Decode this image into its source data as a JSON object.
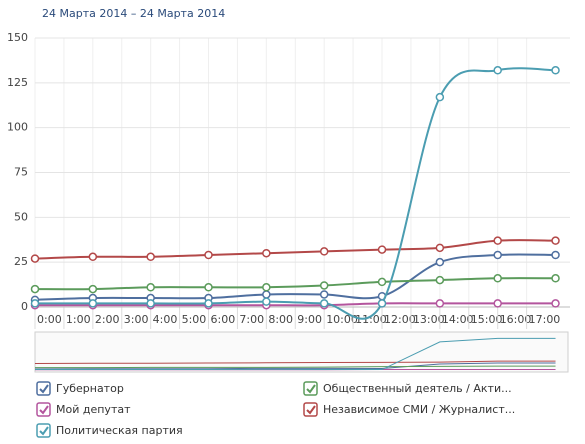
{
  "chart_data": {
    "type": "line",
    "title": "24 Марта 2014 – 24 Марта 2014",
    "x": [
      0,
      2,
      4,
      6,
      8,
      10,
      12,
      14,
      16,
      18
    ],
    "xlim": [
      0,
      18.5
    ],
    "xticks": [
      {
        "value": 0,
        "label": "0:00"
      },
      {
        "value": 1,
        "label": "1:00"
      },
      {
        "value": 2,
        "label": "2:00"
      },
      {
        "value": 3,
        "label": "3:00"
      },
      {
        "value": 4,
        "label": "4:00"
      },
      {
        "value": 5,
        "label": "5:00"
      },
      {
        "value": 6,
        "label": "6:00"
      },
      {
        "value": 7,
        "label": "7:00"
      },
      {
        "value": 8,
        "label": "8:00"
      },
      {
        "value": 9,
        "label": "9:00"
      },
      {
        "value": 10,
        "label": "10:00"
      },
      {
        "value": 11,
        "label": "11:00"
      },
      {
        "value": 12,
        "label": "12:00"
      },
      {
        "value": 13,
        "label": "13:00"
      },
      {
        "value": 14,
        "label": "14:00"
      },
      {
        "value": 15,
        "label": "15:00"
      },
      {
        "value": 16,
        "label": "16:00"
      },
      {
        "value": 17,
        "label": "17:00"
      }
    ],
    "ylim": [
      0,
      150
    ],
    "yticks": [
      0,
      25,
      50,
      75,
      100,
      125,
      150
    ],
    "grid": true,
    "series": [
      {
        "name": "Губернатор",
        "color": "#4f6f9f",
        "values": [
          4,
          5,
          5,
          5,
          7,
          7,
          6,
          25,
          29,
          29
        ]
      },
      {
        "name": "Общественный деятель / Акти...",
        "color": "#5b9b5b",
        "values": [
          10,
          10,
          11,
          11,
          11,
          12,
          14,
          15,
          16,
          16
        ]
      },
      {
        "name": "Мой депутат",
        "color": "#b3559d",
        "values": [
          1,
          1,
          1,
          1,
          1,
          1,
          2,
          2,
          2,
          2
        ]
      },
      {
        "name": "Независимое СМИ / Журналист...",
        "color": "#b34848",
        "values": [
          27,
          28,
          28,
          29,
          30,
          31,
          32,
          33,
          37,
          37
        ]
      },
      {
        "name": "Политическая партия",
        "color": "#4b9db1",
        "values": [
          2,
          2,
          2,
          2,
          3,
          2,
          2,
          117,
          132,
          132
        ]
      }
    ]
  }
}
